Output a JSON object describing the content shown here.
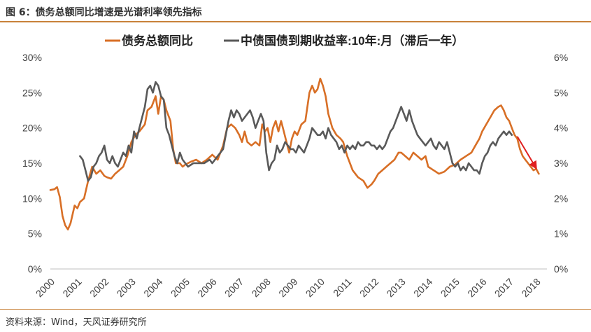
{
  "header": {
    "title": "图 6：债务总额同比增速是光谱利率领先指标"
  },
  "footer": {
    "source": "资料来源：Wind，天风证券研究所"
  },
  "colors": {
    "debt": "#d86f26",
    "bond": "#595959",
    "arrow": "#e02020",
    "rule": "#c8823a",
    "axis": "#bfbfbf"
  },
  "chart_data": {
    "type": "line",
    "legend_position": "top",
    "grid": false,
    "x_ticks": [
      "2000",
      "2001",
      "2002",
      "2003",
      "2004",
      "2005",
      "2006",
      "2007",
      "2008",
      "2009",
      "2010",
      "2011",
      "2012",
      "2013",
      "2014",
      "2015",
      "2016",
      "2017",
      "2018"
    ],
    "y_left": {
      "ticks": [
        "0%",
        "5%",
        "10%",
        "15%",
        "20%",
        "25%",
        "30%"
      ],
      "range": [
        0,
        30
      ]
    },
    "y_right": {
      "ticks": [
        "0%",
        "1%",
        "2%",
        "3%",
        "4%",
        "5%",
        "6%"
      ],
      "range": [
        0,
        6
      ]
    },
    "series": [
      {
        "name": "债务总额同比",
        "axis": "left",
        "color": "#d86f26",
        "points": [
          [
            2000.0,
            11.2
          ],
          [
            2000.15,
            11.3
          ],
          [
            2000.25,
            11.6
          ],
          [
            2000.35,
            10.2
          ],
          [
            2000.45,
            7.5
          ],
          [
            2000.55,
            6.2
          ],
          [
            2000.65,
            5.6
          ],
          [
            2000.75,
            6.5
          ],
          [
            2000.9,
            9.0
          ],
          [
            2001.0,
            8.6
          ],
          [
            2001.1,
            9.5
          ],
          [
            2001.25,
            10.0
          ],
          [
            2001.4,
            12.5
          ],
          [
            2001.55,
            14.5
          ],
          [
            2001.7,
            13.5
          ],
          [
            2001.85,
            14.0
          ],
          [
            2002.0,
            13.2
          ],
          [
            2002.1,
            13.0
          ],
          [
            2002.25,
            12.8
          ],
          [
            2002.4,
            13.5
          ],
          [
            2002.55,
            14.0
          ],
          [
            2002.7,
            14.5
          ],
          [
            2002.85,
            16.0
          ],
          [
            2003.0,
            18.0
          ],
          [
            2003.15,
            19.0
          ],
          [
            2003.3,
            19.5
          ],
          [
            2003.4,
            20.0
          ],
          [
            2003.5,
            20.5
          ],
          [
            2003.6,
            22.5
          ],
          [
            2003.75,
            23.0
          ],
          [
            2003.9,
            24.5
          ],
          [
            2004.0,
            22.0
          ],
          [
            2004.1,
            24.5
          ],
          [
            2004.2,
            24.0
          ],
          [
            2004.3,
            22.5
          ],
          [
            2004.45,
            21.0
          ],
          [
            2004.55,
            17.0
          ],
          [
            2004.65,
            15.0
          ],
          [
            2004.8,
            15.0
          ],
          [
            2004.9,
            14.5
          ],
          [
            2005.0,
            14.8
          ],
          [
            2005.2,
            15.2
          ],
          [
            2005.4,
            15.5
          ],
          [
            2005.6,
            15.0
          ],
          [
            2005.8,
            15.5
          ],
          [
            2006.0,
            16.2
          ],
          [
            2006.2,
            15.5
          ],
          [
            2006.4,
            17.5
          ],
          [
            2006.55,
            20.0
          ],
          [
            2006.7,
            20.5
          ],
          [
            2006.85,
            20.0
          ],
          [
            2007.0,
            19.0
          ],
          [
            2007.1,
            18.0
          ],
          [
            2007.2,
            19.5
          ],
          [
            2007.3,
            18.0
          ],
          [
            2007.45,
            17.5
          ],
          [
            2007.6,
            18.0
          ],
          [
            2007.75,
            17.5
          ],
          [
            2007.85,
            20.5
          ],
          [
            2007.95,
            19.5
          ],
          [
            2008.05,
            20.0
          ],
          [
            2008.15,
            18.0
          ],
          [
            2008.25,
            20.0
          ],
          [
            2008.35,
            21.0
          ],
          [
            2008.45,
            19.5
          ],
          [
            2008.55,
            21.0
          ],
          [
            2008.65,
            19.5
          ],
          [
            2008.75,
            18.0
          ],
          [
            2008.85,
            16.5
          ],
          [
            2008.95,
            18.5
          ],
          [
            2009.05,
            19.5
          ],
          [
            2009.15,
            19.0
          ],
          [
            2009.3,
            20.5
          ],
          [
            2009.45,
            21.0
          ],
          [
            2009.6,
            25.0
          ],
          [
            2009.7,
            26.0
          ],
          [
            2009.8,
            25.0
          ],
          [
            2009.9,
            25.5
          ],
          [
            2010.0,
            27.0
          ],
          [
            2010.1,
            26.0
          ],
          [
            2010.2,
            24.5
          ],
          [
            2010.3,
            22.0
          ],
          [
            2010.45,
            20.0
          ],
          [
            2010.6,
            19.0
          ],
          [
            2010.75,
            18.5
          ],
          [
            2010.85,
            18.0
          ],
          [
            2011.0,
            16.0
          ],
          [
            2011.2,
            14.0
          ],
          [
            2011.4,
            13.0
          ],
          [
            2011.6,
            12.5
          ],
          [
            2011.75,
            11.5
          ],
          [
            2011.9,
            12.0
          ],
          [
            2012.0,
            12.5
          ],
          [
            2012.15,
            13.5
          ],
          [
            2012.3,
            14.0
          ],
          [
            2012.45,
            14.5
          ],
          [
            2012.6,
            15.0
          ],
          [
            2012.75,
            15.5
          ],
          [
            2012.9,
            16.5
          ],
          [
            2013.0,
            16.5
          ],
          [
            2013.15,
            16.0
          ],
          [
            2013.3,
            15.5
          ],
          [
            2013.45,
            16.5
          ],
          [
            2013.6,
            16.0
          ],
          [
            2013.75,
            15.5
          ],
          [
            2013.9,
            16.0
          ],
          [
            2014.0,
            14.5
          ],
          [
            2014.2,
            14.0
          ],
          [
            2014.4,
            13.5
          ],
          [
            2014.6,
            13.8
          ],
          [
            2014.8,
            14.5
          ],
          [
            2015.0,
            14.8
          ],
          [
            2015.2,
            15.5
          ],
          [
            2015.4,
            16.0
          ],
          [
            2015.6,
            16.5
          ],
          [
            2015.75,
            17.5
          ],
          [
            2015.9,
            18.5
          ],
          [
            2016.0,
            19.5
          ],
          [
            2016.15,
            20.5
          ],
          [
            2016.3,
            21.5
          ],
          [
            2016.45,
            22.5
          ],
          [
            2016.6,
            23.0
          ],
          [
            2016.7,
            23.2
          ],
          [
            2016.8,
            22.5
          ],
          [
            2016.9,
            21.5
          ],
          [
            2017.0,
            21.0
          ],
          [
            2017.1,
            20.0
          ],
          [
            2017.2,
            19.0
          ],
          [
            2017.3,
            18.5
          ],
          [
            2017.4,
            17.0
          ],
          [
            2017.5,
            16.0
          ],
          [
            2017.6,
            15.5
          ],
          [
            2017.7,
            15.0
          ],
          [
            2017.8,
            14.5
          ],
          [
            2017.9,
            14.0
          ],
          [
            2018.0,
            14.2
          ],
          [
            2018.1,
            13.5
          ]
        ]
      },
      {
        "name": "中债国债到期收益率:10年:月（滞后一年）",
        "axis": "right",
        "color": "#595959",
        "points": [
          [
            2001.1,
            3.2
          ],
          [
            2001.2,
            3.1
          ],
          [
            2001.3,
            2.8
          ],
          [
            2001.4,
            2.5
          ],
          [
            2001.5,
            2.6
          ],
          [
            2001.6,
            2.9
          ],
          [
            2001.7,
            3.0
          ],
          [
            2001.8,
            3.2
          ],
          [
            2001.9,
            3.3
          ],
          [
            2002.0,
            3.5
          ],
          [
            2002.1,
            3.1
          ],
          [
            2002.2,
            3.0
          ],
          [
            2002.3,
            3.2
          ],
          [
            2002.4,
            3.0
          ],
          [
            2002.5,
            2.9
          ],
          [
            2002.6,
            3.1
          ],
          [
            2002.7,
            3.3
          ],
          [
            2002.8,
            3.2
          ],
          [
            2002.9,
            3.5
          ],
          [
            2003.0,
            3.3
          ],
          [
            2003.1,
            3.9
          ],
          [
            2003.2,
            3.7
          ],
          [
            2003.3,
            4.0
          ],
          [
            2003.4,
            4.3
          ],
          [
            2003.5,
            4.6
          ],
          [
            2003.6,
            5.1
          ],
          [
            2003.7,
            5.2
          ],
          [
            2003.8,
            5.0
          ],
          [
            2003.9,
            5.3
          ],
          [
            2004.0,
            5.2
          ],
          [
            2004.1,
            4.9
          ],
          [
            2004.2,
            4.8
          ],
          [
            2004.3,
            4.0
          ],
          [
            2004.4,
            3.8
          ],
          [
            2004.5,
            3.5
          ],
          [
            2004.6,
            3.2
          ],
          [
            2004.7,
            3.0
          ],
          [
            2004.8,
            3.3
          ],
          [
            2004.9,
            3.1
          ],
          [
            2005.0,
            3.0
          ],
          [
            2005.1,
            2.9
          ],
          [
            2005.3,
            3.0
          ],
          [
            2005.5,
            3.0
          ],
          [
            2005.7,
            3.0
          ],
          [
            2005.9,
            3.1
          ],
          [
            2006.0,
            3.0
          ],
          [
            2006.2,
            3.2
          ],
          [
            2006.4,
            3.4
          ],
          [
            2006.6,
            4.2
          ],
          [
            2006.7,
            4.5
          ],
          [
            2006.8,
            4.3
          ],
          [
            2006.9,
            4.5
          ],
          [
            2007.0,
            4.4
          ],
          [
            2007.1,
            4.2
          ],
          [
            2007.2,
            4.3
          ],
          [
            2007.4,
            4.5
          ],
          [
            2007.5,
            4.3
          ],
          [
            2007.6,
            4.0
          ],
          [
            2007.7,
            4.2
          ],
          [
            2007.8,
            4.4
          ],
          [
            2007.9,
            4.2
          ],
          [
            2008.0,
            3.3
          ],
          [
            2008.1,
            2.8
          ],
          [
            2008.2,
            3.0
          ],
          [
            2008.3,
            3.1
          ],
          [
            2008.4,
            3.5
          ],
          [
            2008.5,
            3.3
          ],
          [
            2008.6,
            3.4
          ],
          [
            2008.7,
            3.6
          ],
          [
            2008.8,
            3.5
          ],
          [
            2008.9,
            3.4
          ],
          [
            2009.0,
            3.4
          ],
          [
            2009.1,
            3.3
          ],
          [
            2009.2,
            3.5
          ],
          [
            2009.3,
            3.4
          ],
          [
            2009.4,
            3.3
          ],
          [
            2009.5,
            3.5
          ],
          [
            2009.6,
            3.7
          ],
          [
            2009.7,
            4.0
          ],
          [
            2009.8,
            3.9
          ],
          [
            2009.9,
            3.8
          ],
          [
            2010.0,
            3.8
          ],
          [
            2010.1,
            3.9
          ],
          [
            2010.2,
            3.7
          ],
          [
            2010.3,
            4.0
          ],
          [
            2010.4,
            3.8
          ],
          [
            2010.5,
            3.7
          ],
          [
            2010.6,
            3.6
          ],
          [
            2010.7,
            3.4
          ],
          [
            2010.8,
            3.5
          ],
          [
            2010.9,
            3.3
          ],
          [
            2011.0,
            3.5
          ],
          [
            2011.1,
            3.4
          ],
          [
            2011.2,
            3.5
          ],
          [
            2011.3,
            3.4
          ],
          [
            2011.4,
            3.6
          ],
          [
            2011.5,
            3.5
          ],
          [
            2011.6,
            3.5
          ],
          [
            2011.7,
            3.6
          ],
          [
            2011.8,
            3.6
          ],
          [
            2011.9,
            3.5
          ],
          [
            2012.0,
            3.5
          ],
          [
            2012.1,
            3.4
          ],
          [
            2012.2,
            3.5
          ],
          [
            2012.3,
            3.4
          ],
          [
            2012.4,
            3.5
          ],
          [
            2012.5,
            3.7
          ],
          [
            2012.6,
            3.9
          ],
          [
            2012.7,
            4.0
          ],
          [
            2012.8,
            4.2
          ],
          [
            2012.9,
            4.4
          ],
          [
            2013.0,
            4.6
          ],
          [
            2013.1,
            4.4
          ],
          [
            2013.2,
            4.2
          ],
          [
            2013.3,
            4.5
          ],
          [
            2013.4,
            4.2
          ],
          [
            2013.5,
            4.0
          ],
          [
            2013.6,
            3.8
          ],
          [
            2013.7,
            3.7
          ],
          [
            2013.8,
            3.6
          ],
          [
            2013.9,
            3.5
          ],
          [
            2014.0,
            3.6
          ],
          [
            2014.1,
            3.7
          ],
          [
            2014.2,
            3.5
          ],
          [
            2014.3,
            3.4
          ],
          [
            2014.4,
            3.6
          ],
          [
            2014.5,
            3.5
          ],
          [
            2014.6,
            3.4
          ],
          [
            2014.7,
            3.6
          ],
          [
            2014.8,
            3.3
          ],
          [
            2014.9,
            3.0
          ],
          [
            2015.0,
            2.9
          ],
          [
            2015.1,
            3.0
          ],
          [
            2015.2,
            2.8
          ],
          [
            2015.3,
            2.9
          ],
          [
            2015.4,
            2.8
          ],
          [
            2015.5,
            3.0
          ],
          [
            2015.6,
            2.9
          ],
          [
            2015.7,
            2.8
          ],
          [
            2015.8,
            2.8
          ],
          [
            2015.9,
            2.7
          ],
          [
            2016.0,
            3.0
          ],
          [
            2016.1,
            3.2
          ],
          [
            2016.2,
            3.3
          ],
          [
            2016.3,
            3.5
          ],
          [
            2016.4,
            3.6
          ],
          [
            2016.5,
            3.5
          ],
          [
            2016.6,
            3.7
          ],
          [
            2016.7,
            3.8
          ],
          [
            2016.8,
            3.9
          ],
          [
            2016.9,
            3.8
          ],
          [
            2017.0,
            3.9
          ],
          [
            2017.1,
            3.8
          ]
        ]
      }
    ],
    "annotations": [
      {
        "type": "arrow",
        "from": [
          2017.3,
          18.8
        ],
        "to": [
          2018.0,
          14.3
        ],
        "color": "#e02020"
      }
    ]
  }
}
